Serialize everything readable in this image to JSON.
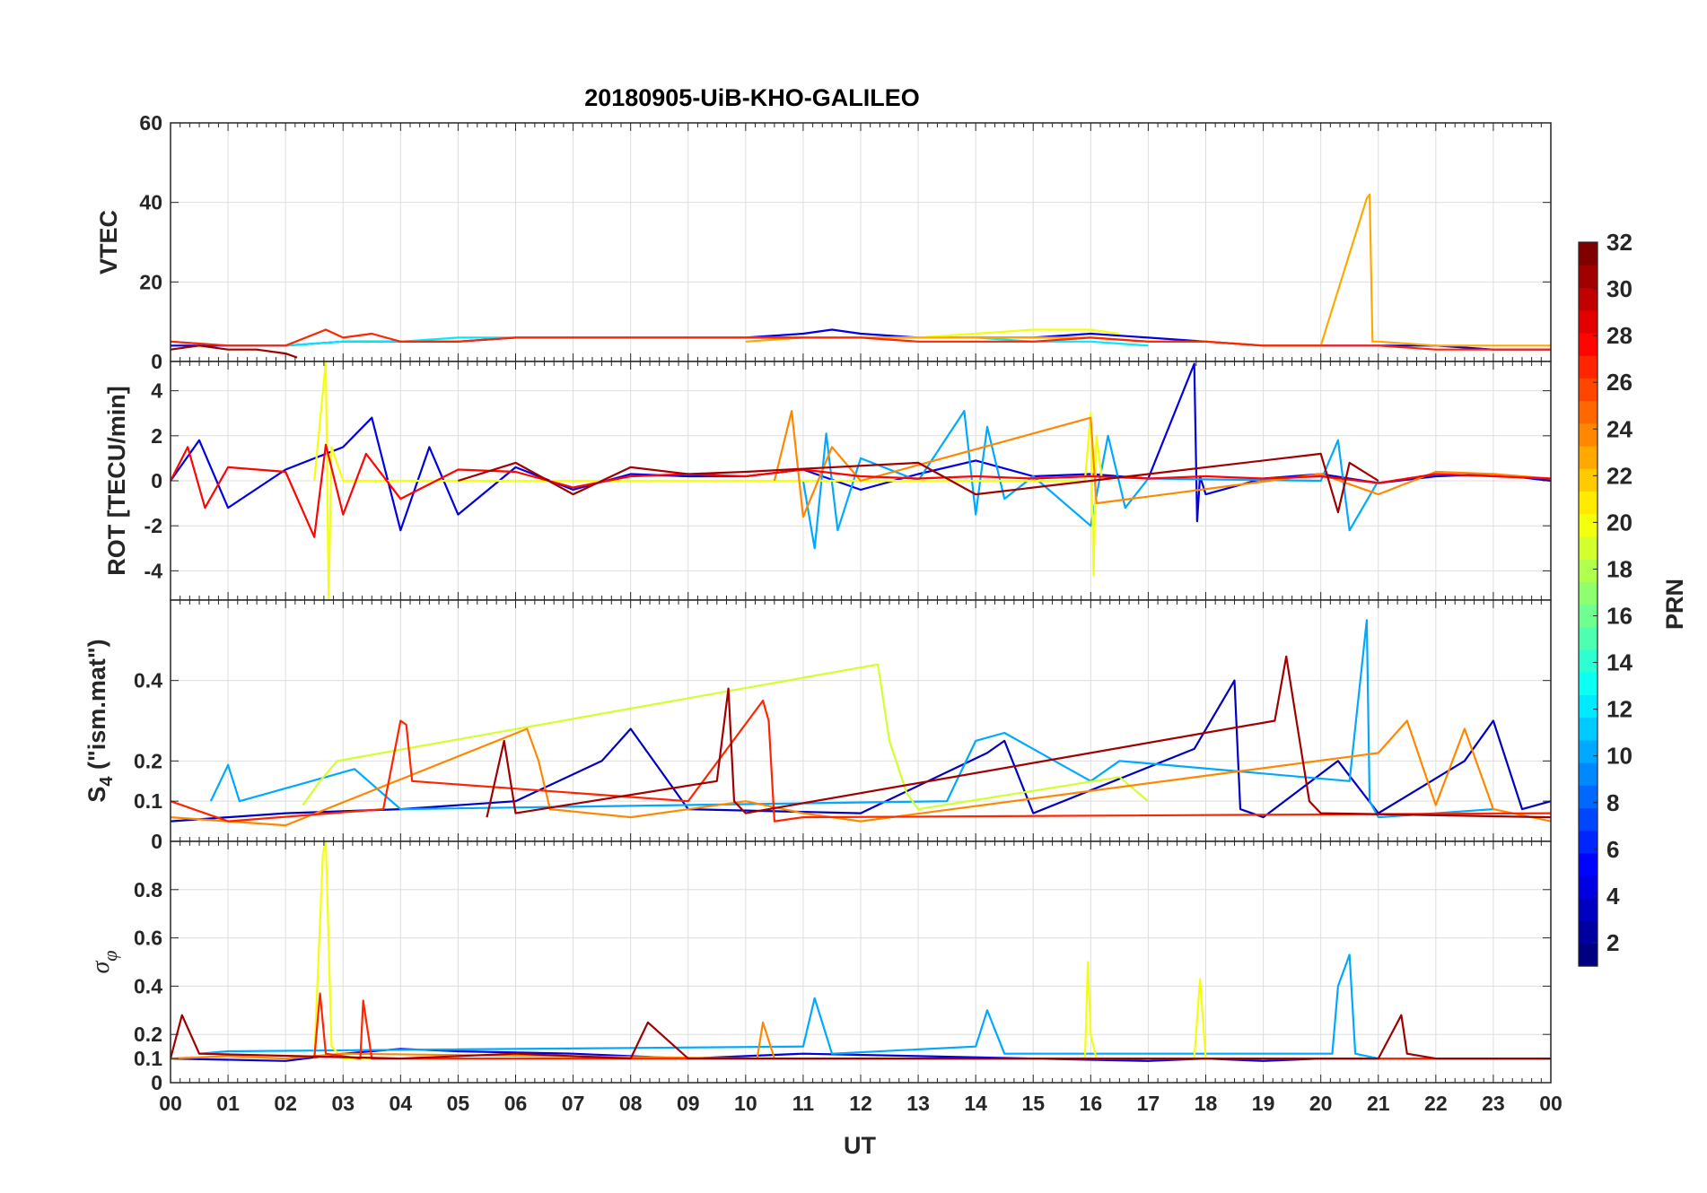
{
  "figure": {
    "title": "20180905-UiB-KHO-GALILEO",
    "xlabel": "UT",
    "x_ticks": [
      "00",
      "01",
      "02",
      "03",
      "04",
      "05",
      "06",
      "07",
      "08",
      "09",
      "10",
      "11",
      "12",
      "13",
      "14",
      "15",
      "16",
      "17",
      "18",
      "19",
      "20",
      "21",
      "22",
      "23",
      "00"
    ]
  },
  "chart_data": [
    {
      "type": "line",
      "panel": "vtec",
      "ylabel": "VTEC",
      "x_range_hours": [
        0,
        24
      ],
      "ylim": [
        0,
        60
      ],
      "yticks": [
        0,
        20,
        40,
        60
      ],
      "grid": true,
      "series": [
        {
          "prn": 4,
          "x": [
            0,
            1,
            2,
            3,
            4,
            5,
            6,
            7,
            8,
            9,
            10,
            11,
            11.5,
            12,
            13,
            14,
            15,
            16,
            17,
            18,
            19,
            20,
            21,
            22,
            23,
            24
          ],
          "y": [
            4,
            4,
            4,
            5,
            5,
            5,
            6,
            6,
            6,
            6,
            6,
            7,
            8,
            7,
            6,
            6,
            6,
            7,
            6,
            5,
            4,
            4,
            4,
            4,
            3,
            3
          ]
        },
        {
          "prn": 12,
          "x": [
            0,
            1,
            2,
            3,
            4,
            5,
            6,
            7,
            8,
            9,
            10,
            11,
            12,
            13,
            14,
            15,
            16,
            17
          ],
          "y": [
            5,
            4,
            4,
            5,
            5,
            6,
            6,
            6,
            6,
            6,
            6,
            6,
            6,
            6,
            6,
            5,
            5,
            4
          ]
        },
        {
          "prn": 20,
          "x": [
            12,
            13,
            14,
            15,
            16,
            16.5
          ],
          "y": [
            6,
            6,
            7,
            8,
            8,
            7
          ]
        },
        {
          "prn": 23,
          "x": [
            10,
            11,
            12,
            13,
            14,
            15,
            16,
            17,
            18,
            19,
            20,
            20.8,
            20.85,
            20.9,
            21,
            22,
            23,
            24
          ],
          "y": [
            5,
            6,
            6,
            6,
            6,
            6,
            6,
            5,
            5,
            4,
            4,
            41,
            42,
            5,
            5,
            4,
            4,
            4
          ]
        },
        {
          "prn": 27,
          "x": [
            0,
            1,
            2,
            2.7,
            3,
            3.5,
            4,
            5,
            6,
            7,
            8,
            9,
            10,
            11,
            12,
            13,
            14,
            15,
            16,
            17,
            18,
            19,
            20,
            21,
            22,
            23,
            24
          ],
          "y": [
            5,
            4,
            4,
            8,
            6,
            7,
            5,
            5,
            6,
            6,
            6,
            6,
            6,
            6,
            6,
            5,
            5,
            5,
            6,
            5,
            5,
            4,
            4,
            4,
            3,
            3,
            3
          ]
        },
        {
          "prn": 31,
          "x": [
            0,
            0.5,
            1,
            1.5,
            2,
            2.2
          ],
          "y": [
            3,
            4,
            3,
            3,
            2,
            1
          ]
        }
      ]
    },
    {
      "type": "line",
      "panel": "rot",
      "ylabel": "ROT [TECU/min]",
      "x_range_hours": [
        0,
        24
      ],
      "ylim": [
        -5.3,
        5.3
      ],
      "yticks": [
        -4,
        -2,
        0,
        2,
        4
      ],
      "grid": true,
      "series": [
        {
          "prn": 4,
          "x": [
            0,
            0.5,
            1,
            2,
            3,
            3.5,
            4,
            4.5,
            5,
            6,
            7,
            8,
            9,
            10,
            11,
            12,
            13,
            14,
            15,
            16,
            17,
            17.8,
            17.85,
            17.9,
            18,
            19,
            20,
            21,
            22,
            23,
            24
          ],
          "y": [
            0,
            1.8,
            -1.2,
            0.5,
            1.5,
            2.8,
            -2.2,
            1.5,
            -1.5,
            0.6,
            -0.4,
            0.3,
            0.2,
            0.2,
            0.5,
            -0.4,
            0.3,
            0.9,
            0.2,
            0.3,
            0.1,
            5.2,
            -1.8,
            0.2,
            -0.6,
            0.1,
            0.3,
            -0.1,
            0.2,
            0.3,
            0
          ]
        },
        {
          "prn": 10,
          "x": [
            11,
            11.2,
            11.4,
            11.6,
            12,
            13,
            13.8,
            14,
            14.2,
            14.5,
            15,
            16,
            16.3,
            16.6,
            17,
            20,
            20.3,
            20.5,
            21
          ],
          "y": [
            0,
            -3,
            2.1,
            -2.2,
            1,
            0,
            3.1,
            -1.5,
            2.4,
            -0.8,
            0.2,
            -2,
            2,
            -1.2,
            0.1,
            0,
            1.8,
            -2.2,
            0
          ]
        },
        {
          "prn": 20,
          "x": [
            2.5,
            2.7,
            2.75,
            2.8,
            3,
            15.9,
            16,
            16.05,
            16.1,
            16.2
          ],
          "y": [
            0,
            5.3,
            -5.3,
            1.5,
            0,
            0,
            3,
            -4.2,
            2,
            0
          ]
        },
        {
          "prn": 24,
          "x": [
            10.5,
            10.8,
            11,
            11.5,
            12,
            16,
            16.1,
            20,
            21,
            22,
            23,
            24
          ],
          "y": [
            0,
            3.1,
            -1.6,
            1.5,
            0,
            2.8,
            -1,
            0.3,
            -0.6,
            0.4,
            0.3,
            0.1
          ]
        },
        {
          "prn": 28,
          "x": [
            0,
            0.3,
            0.6,
            1,
            2,
            2.5,
            2.7,
            3,
            3.4,
            4,
            5,
            6,
            7,
            8,
            9,
            10,
            11,
            12,
            13,
            14,
            15,
            16,
            17,
            18,
            19,
            20,
            21,
            22,
            23,
            24
          ],
          "y": [
            0,
            1.5,
            -1.2,
            0.6,
            0.4,
            -2.5,
            1.6,
            -1.5,
            1.2,
            -0.8,
            0.5,
            0.4,
            -0.3,
            0.2,
            0.3,
            0.2,
            0.5,
            0.2,
            0.1,
            0.2,
            0.1,
            0.2,
            0.1,
            0.2,
            0.1,
            0.2,
            -0.1,
            0.3,
            0.2,
            0.1
          ]
        },
        {
          "prn": 31,
          "x": [
            5,
            6,
            7,
            8,
            9,
            10,
            13,
            14,
            20,
            20.3,
            20.5,
            21
          ],
          "y": [
            0,
            0.8,
            -0.6,
            0.6,
            0.3,
            0.4,
            0.8,
            -0.6,
            1.2,
            -1.4,
            0.8,
            0
          ]
        }
      ]
    },
    {
      "type": "line",
      "panel": "s4",
      "ylabel": "S4 (\"ism.mat\")",
      "x_range_hours": [
        0,
        24
      ],
      "ylim": [
        0,
        0.6
      ],
      "yticks": [
        0,
        0.1,
        0.2,
        0.4
      ],
      "grid": true,
      "series": [
        {
          "prn": 3,
          "x": [
            0,
            2,
            4,
            6,
            7.5,
            8,
            9,
            12,
            14.2,
            14.5,
            15,
            17.8,
            18.5,
            18.6,
            19,
            20.3,
            21,
            22.5,
            23,
            23.5,
            24
          ],
          "y": [
            0.05,
            0.07,
            0.08,
            0.1,
            0.2,
            0.28,
            0.08,
            0.07,
            0.22,
            0.25,
            0.07,
            0.23,
            0.4,
            0.08,
            0.06,
            0.2,
            0.07,
            0.2,
            0.3,
            0.08,
            0.1
          ]
        },
        {
          "prn": 10,
          "x": [
            0.7,
            1,
            1.2,
            3.2,
            4,
            13.5,
            14,
            14.5,
            16,
            16.5,
            20.5,
            20.8,
            20.85,
            21,
            23
          ],
          "y": [
            0.1,
            0.19,
            0.1,
            0.18,
            0.08,
            0.1,
            0.25,
            0.27,
            0.15,
            0.2,
            0.15,
            0.55,
            0.1,
            0.06,
            0.08
          ]
        },
        {
          "prn": 19,
          "x": [
            2.3,
            2.6,
            2.9,
            12.3,
            12.5,
            12.8,
            13,
            16.5,
            17
          ],
          "y": [
            0.09,
            0.15,
            0.2,
            0.44,
            0.25,
            0.12,
            0.08,
            0.16,
            0.1
          ]
        },
        {
          "prn": 24,
          "x": [
            0,
            1,
            2,
            6.2,
            6.4,
            6.6,
            8,
            10,
            11,
            11.5,
            12,
            21,
            21.5,
            22,
            22.5,
            23,
            24
          ],
          "y": [
            0.06,
            0.05,
            0.04,
            0.28,
            0.2,
            0.08,
            0.06,
            0.1,
            0.07,
            0.06,
            0.05,
            0.22,
            0.3,
            0.09,
            0.28,
            0.08,
            0.05
          ]
        },
        {
          "prn": 27,
          "x": [
            0,
            1,
            3.7,
            4,
            4.1,
            4.2,
            9,
            10.3,
            10.4,
            10.5,
            11,
            24
          ],
          "y": [
            0.1,
            0.05,
            0.08,
            0.3,
            0.29,
            0.15,
            0.1,
            0.35,
            0.3,
            0.05,
            0.06,
            0.07
          ]
        },
        {
          "prn": 31,
          "x": [
            5.5,
            5.8,
            6,
            9.5,
            9.7,
            9.8,
            10,
            19.2,
            19.4,
            19.6,
            19.8,
            20,
            24
          ],
          "y": [
            0.06,
            0.25,
            0.07,
            0.15,
            0.38,
            0.1,
            0.07,
            0.3,
            0.46,
            0.28,
            0.1,
            0.07,
            0.06
          ]
        }
      ]
    },
    {
      "type": "line",
      "panel": "sigma_phi",
      "ylabel": "σφ",
      "x_range_hours": [
        0,
        24
      ],
      "ylim": [
        0,
        1
      ],
      "yticks": [
        0,
        0.1,
        0.2,
        0.4,
        0.6,
        0.8
      ],
      "grid": true,
      "series": [
        {
          "prn": 4,
          "x": [
            0,
            2,
            3,
            4,
            5,
            7,
            9,
            10,
            11,
            13,
            15,
            17,
            18,
            19,
            20,
            21,
            24
          ],
          "y": [
            0.1,
            0.09,
            0.12,
            0.14,
            0.13,
            0.12,
            0.1,
            0.11,
            0.12,
            0.11,
            0.1,
            0.09,
            0.1,
            0.09,
            0.1,
            0.1,
            0.1
          ]
        },
        {
          "prn": 10,
          "x": [
            0.5,
            1,
            11,
            11.2,
            11.5,
            14,
            14.2,
            14.5,
            20.2,
            20.3,
            20.5,
            20.6,
            21
          ],
          "y": [
            0.12,
            0.13,
            0.15,
            0.35,
            0.12,
            0.15,
            0.3,
            0.12,
            0.12,
            0.4,
            0.53,
            0.12,
            0.1
          ]
        },
        {
          "prn": 20,
          "x": [
            2.5,
            2.65,
            2.7,
            2.8,
            3,
            15.9,
            15.95,
            16,
            16.1,
            17.8,
            17.9,
            18
          ],
          "y": [
            0.1,
            0.95,
            1,
            0.15,
            0.1,
            0.1,
            0.5,
            0.2,
            0.1,
            0.1,
            0.43,
            0.1
          ]
        },
        {
          "prn": 24,
          "x": [
            0,
            1,
            2,
            3,
            10.2,
            10.3,
            10.5,
            16,
            24
          ],
          "y": [
            0.1,
            0.11,
            0.1,
            0.12,
            0.1,
            0.25,
            0.1,
            0.1,
            0.1
          ]
        },
        {
          "prn": 27,
          "x": [
            2.5,
            2.6,
            2.7,
            3.3,
            3.35,
            3.5,
            24
          ],
          "y": [
            0.1,
            0.37,
            0.12,
            0.1,
            0.34,
            0.1,
            0.1
          ]
        },
        {
          "prn": 31,
          "x": [
            0,
            0.2,
            0.5,
            4,
            6,
            8,
            8.3,
            9,
            12,
            15,
            17,
            19,
            20,
            21,
            21.4,
            21.5,
            22,
            24
          ],
          "y": [
            0.1,
            0.28,
            0.12,
            0.1,
            0.12,
            0.1,
            0.25,
            0.1,
            0.1,
            0.1,
            0.1,
            0.1,
            0.1,
            0.1,
            0.28,
            0.12,
            0.1,
            0.1
          ]
        }
      ]
    }
  ],
  "colorbar": {
    "label": "PRN",
    "colormap": "jet",
    "range": [
      1,
      32
    ],
    "ticks": [
      2,
      4,
      6,
      8,
      10,
      12,
      14,
      16,
      18,
      20,
      22,
      24,
      26,
      28,
      30,
      32
    ]
  }
}
